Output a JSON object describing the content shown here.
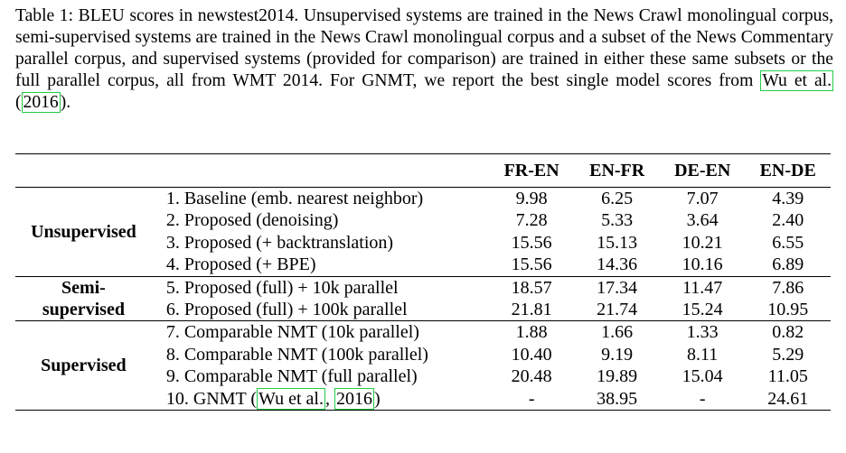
{
  "caption": {
    "text_before": "Table 1: BLEU scores in newstest2014. Unsupervised systems are trained in the News Crawl monolingual corpus, semi-supervised systems are trained in the News Crawl monolingual corpus and a subset of the News Commentary parallel corpus, and supervised systems (provided for comparison) are trained in either these same subsets or the full parallel corpus, all from WMT 2014. For GNMT, we report the best single model scores from ",
    "cite_author": "Wu et al.",
    "cite_open": " (",
    "cite_year": "2016",
    "cite_close": ")."
  },
  "table": {
    "columns": [
      "FR-EN",
      "EN-FR",
      "DE-EN",
      "EN-DE"
    ],
    "groups": [
      {
        "label": "Unsupervised",
        "rows": [
          {
            "system": "1. Baseline (emb. nearest neighbor)",
            "values": [
              "9.98",
              "6.25",
              "7.07",
              "4.39"
            ]
          },
          {
            "system": "2. Proposed (denoising)",
            "values": [
              "7.28",
              "5.33",
              "3.64",
              "2.40"
            ]
          },
          {
            "system": "3. Proposed (+ backtranslation)",
            "values": [
              "15.56",
              "15.13",
              "10.21",
              "6.55"
            ]
          },
          {
            "system": "4. Proposed (+ BPE)",
            "values": [
              "15.56",
              "14.36",
              "10.16",
              "6.89"
            ]
          }
        ]
      },
      {
        "label_line1": "Semi-",
        "label_line2": "supervised",
        "rows": [
          {
            "system": "5. Proposed (full) + 10k parallel",
            "values": [
              "18.57",
              "17.34",
              "11.47",
              "7.86"
            ]
          },
          {
            "system": "6. Proposed (full) + 100k parallel",
            "values": [
              "21.81",
              "21.74",
              "15.24",
              "10.95"
            ]
          }
        ]
      },
      {
        "label": "Supervised",
        "rows": [
          {
            "system": "7. Comparable NMT (10k parallel)",
            "values": [
              "1.88",
              "1.66",
              "1.33",
              "0.82"
            ]
          },
          {
            "system": "8. Comparable NMT (100k parallel)",
            "values": [
              "10.40",
              "9.19",
              "8.11",
              "5.29"
            ]
          },
          {
            "system": "9. Comparable NMT (full parallel)",
            "values": [
              "20.48",
              "19.89",
              "15.04",
              "11.05"
            ]
          },
          {
            "system_prefix": "10. GNMT (",
            "cite_author": "Wu et al.",
            "cite_sep": ", ",
            "cite_year": "2016",
            "system_suffix": ")",
            "values": [
              "-",
              "38.95",
              "-",
              "24.61"
            ]
          }
        ]
      }
    ]
  }
}
